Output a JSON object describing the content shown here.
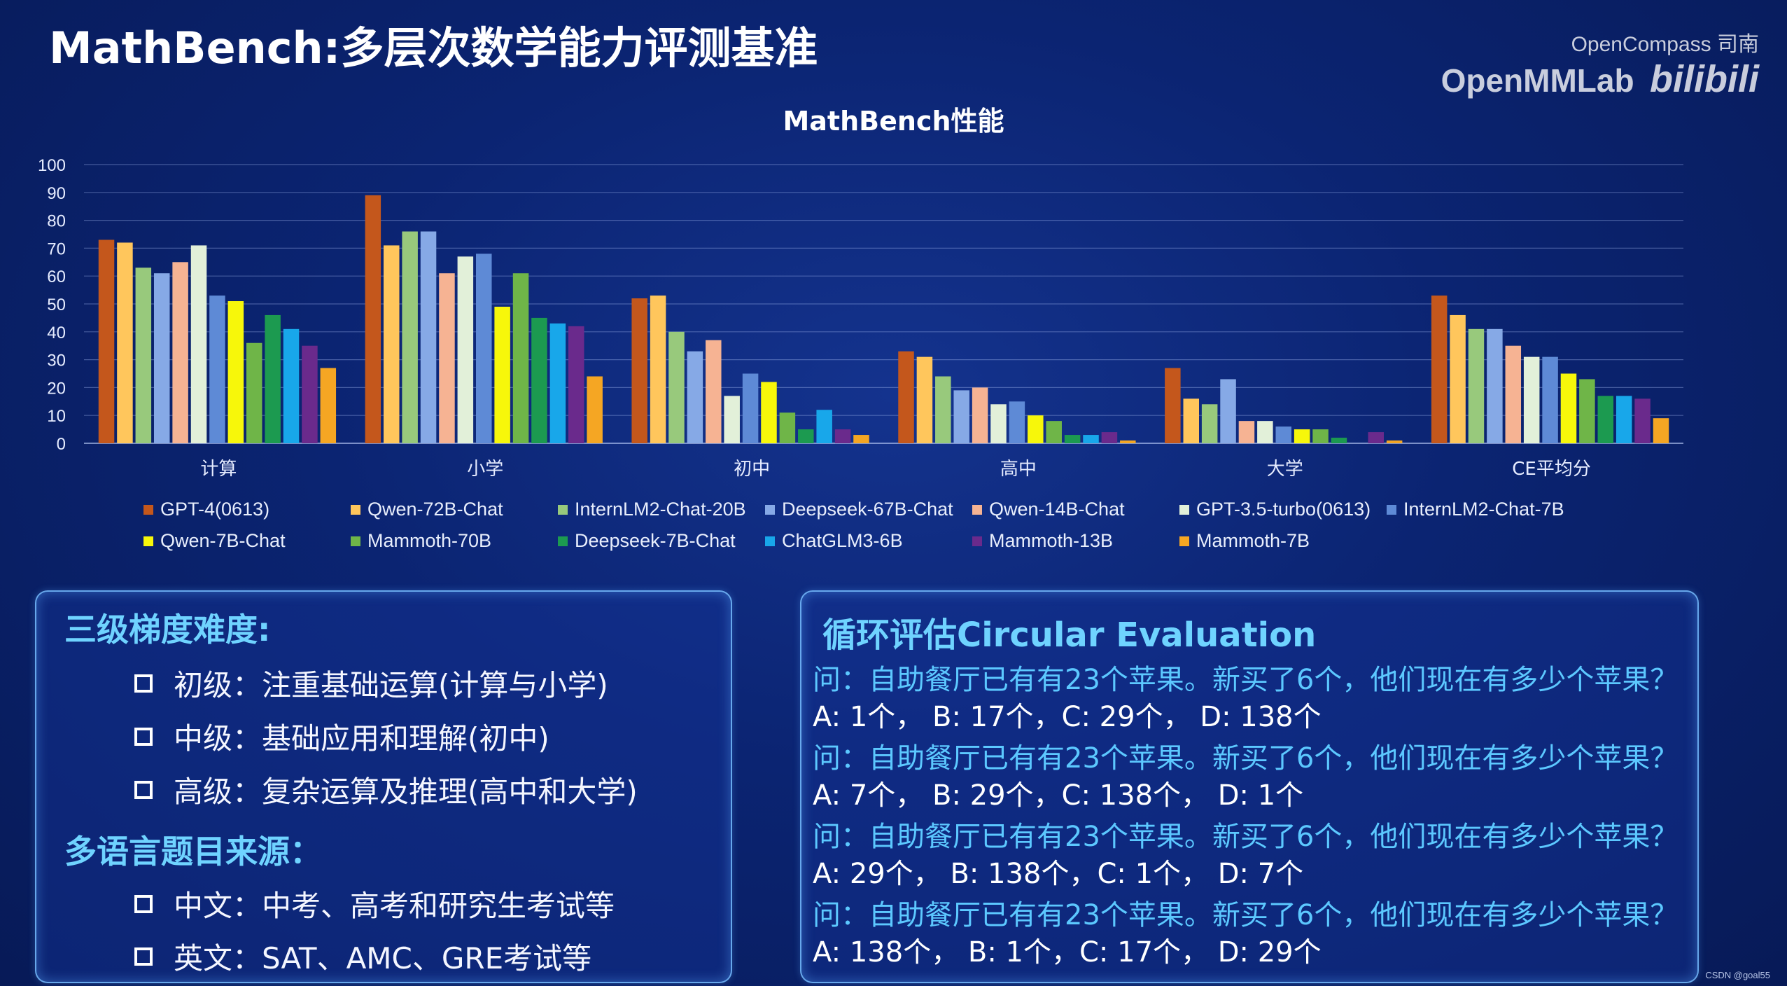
{
  "slide": {
    "title": "MathBench:多层次数学能力评测基准",
    "brand_top": "OpenCompass 司南",
    "brand_main": "OpenMMLab",
    "brand_logo": "bilibili",
    "watermark": "CSDN @goal55"
  },
  "chart_data": {
    "type": "bar",
    "title": "MathBench性能",
    "categories": [
      "计算",
      "小学",
      "初中",
      "高中",
      "大学",
      "CE平均分"
    ],
    "ylim": [
      0,
      100
    ],
    "yticks": [
      0,
      10,
      20,
      30,
      40,
      50,
      60,
      70,
      80,
      90,
      100
    ],
    "grid": true,
    "legend_position": "bottom",
    "series": [
      {
        "name": "GPT-4(0613)",
        "color": "#c4571c",
        "values": [
          73,
          89,
          52,
          33,
          27,
          53
        ]
      },
      {
        "name": "Qwen-72B-Chat",
        "color": "#ffc65c",
        "values": [
          72,
          71,
          53,
          31,
          16,
          46
        ]
      },
      {
        "name": "InternLM2-Chat-20B",
        "color": "#98c97c",
        "values": [
          63,
          76,
          40,
          24,
          14,
          41
        ]
      },
      {
        "name": "Deepseek-67B-Chat",
        "color": "#86a9e6",
        "values": [
          61,
          76,
          33,
          19,
          23,
          41
        ]
      },
      {
        "name": "Qwen-14B-Chat",
        "color": "#f6b393",
        "values": [
          65,
          61,
          37,
          20,
          8,
          35
        ]
      },
      {
        "name": "GPT-3.5-turbo(0613)",
        "color": "#e2f0d9",
        "values": [
          71,
          67,
          17,
          14,
          8,
          31
        ]
      },
      {
        "name": "InternLM2-Chat-7B",
        "color": "#5e8ad6",
        "values": [
          53,
          68,
          25,
          15,
          6,
          31
        ]
      },
      {
        "name": "Qwen-7B-Chat",
        "color": "#f7f70a",
        "values": [
          51,
          49,
          22,
          10,
          5,
          25
        ]
      },
      {
        "name": "Mammoth-70B",
        "color": "#6fb548",
        "values": [
          36,
          61,
          11,
          8,
          5,
          23
        ]
      },
      {
        "name": "Deepseek-7B-Chat",
        "color": "#1c9a50",
        "values": [
          46,
          45,
          5,
          3,
          2,
          17
        ]
      },
      {
        "name": "ChatGLM3-6B",
        "color": "#18a7ea",
        "values": [
          41,
          43,
          12,
          3,
          0,
          17
        ]
      },
      {
        "name": "Mammoth-13B",
        "color": "#6a2a8c",
        "values": [
          35,
          42,
          5,
          4,
          4,
          16
        ]
      },
      {
        "name": "Mammoth-7B",
        "color": "#f5a623",
        "values": [
          27,
          24,
          3,
          1,
          1,
          9
        ]
      }
    ]
  },
  "left_panel": {
    "heading1": "三级梯度难度:",
    "bullets1": [
      "初级：注重基础运算(计算与小学)",
      "中级：基础应用和理解(初中)",
      "高级：复杂运算及推理(高中和大学)"
    ],
    "heading2": "多语言题目来源：",
    "bullets2": [
      "中文：中考、高考和研究生考试等",
      "英文：SAT、AMC、GRE考试等"
    ]
  },
  "right_panel": {
    "heading": "循环评估Circular Evaluation",
    "items": [
      {
        "question": "问：自助餐厅已有有23个苹果。新买了6个，他们现在有多少个苹果？",
        "answer": "A: 1个， B: 17个，C: 29个， D: 138个"
      },
      {
        "question": "问：自助餐厅已有有23个苹果。新买了6个，他们现在有多少个苹果？",
        "answer": "A: 7个， B: 29个，C: 138个， D: 1个"
      },
      {
        "question": "问：自助餐厅已有有23个苹果。新买了6个，他们现在有多少个苹果？",
        "answer": "A: 29个， B: 138个，C: 1个， D: 7个"
      },
      {
        "question": "问：自助餐厅已有有23个苹果。新买了6个，他们现在有多少个苹果？",
        "answer": "A: 138个， B: 1个，C: 17个， D: 29个"
      }
    ]
  }
}
